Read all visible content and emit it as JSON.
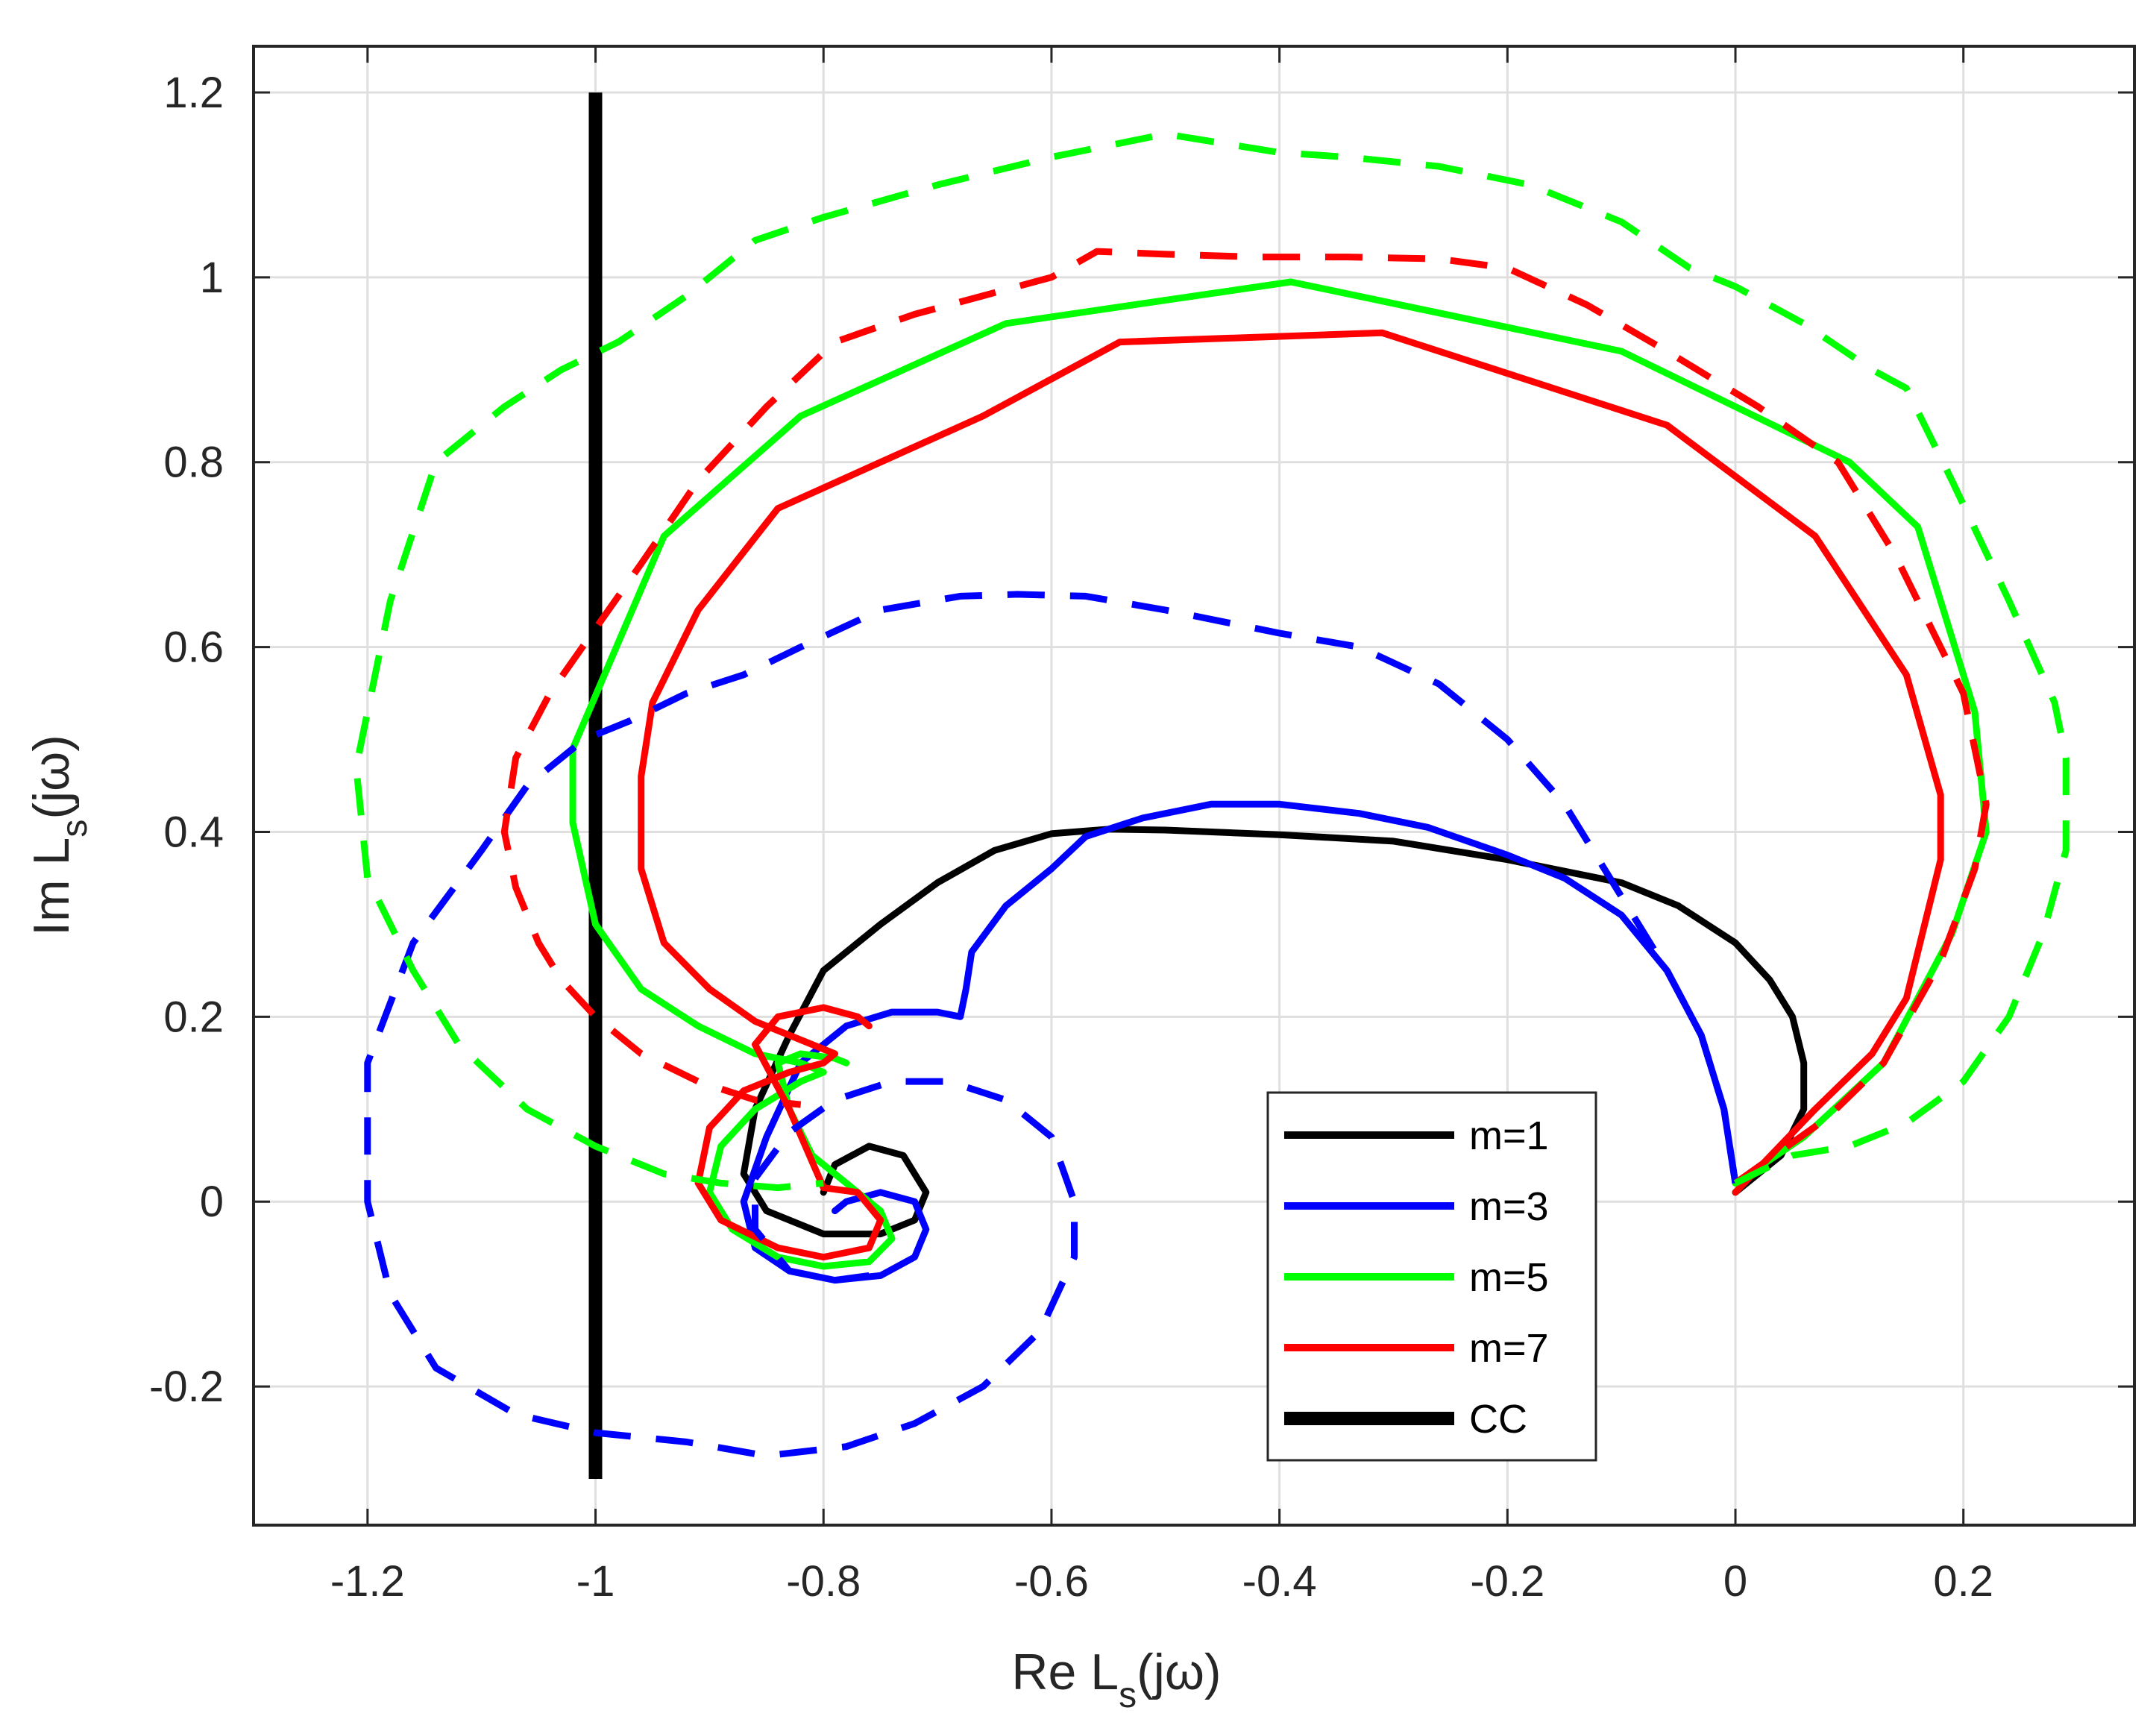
{
  "chart_data": {
    "type": "line",
    "title": "",
    "xlabel": {
      "main": "Re L",
      "sub": "s",
      "tail": "(jω)"
    },
    "ylabel": {
      "main": "Im L",
      "sub": "s",
      "tail": "(jω)"
    },
    "xlim": [
      -1.3,
      0.35
    ],
    "ylim": [
      -0.35,
      1.25
    ],
    "xticks": [
      -1.2,
      -1,
      -0.8,
      -0.6,
      -0.4,
      -0.2,
      0,
      0.2
    ],
    "xtick_labels": [
      "-1.2",
      "-1",
      "-0.8",
      "-0.6",
      "-0.4",
      "-0.2",
      "0",
      "0.2"
    ],
    "yticks": [
      -0.2,
      0,
      0.2,
      0.4,
      0.6,
      0.8,
      1.0,
      1.2
    ],
    "ytick_labels": [
      "-0.2",
      "0",
      "0.2",
      "0.4",
      "0.6",
      "0.8",
      "1",
      "1.2"
    ],
    "grid": true,
    "legend_position": "bottom-right",
    "legend": [
      {
        "label": "m=1",
        "color": "#000000",
        "width": "normal"
      },
      {
        "label": "m=3",
        "color": "#0000ff",
        "width": "normal"
      },
      {
        "label": "m=5",
        "color": "#00ff00",
        "width": "normal"
      },
      {
        "label": "m=7",
        "color": "#ff0000",
        "width": "normal"
      },
      {
        "label": "CC",
        "color": "#000000",
        "width": "thick"
      }
    ],
    "series": [
      {
        "name": "CC",
        "color": "#000000",
        "style": "solid",
        "weight": "thick",
        "x": [
          -1,
          -1
        ],
        "y": [
          -0.3,
          1.2
        ]
      },
      {
        "name": "m=1",
        "color": "#000000",
        "style": "solid",
        "weight": "normal",
        "x": [
          0.0,
          0.04,
          0.06,
          0.06,
          0.05,
          0.03,
          0.0,
          -0.05,
          -0.1,
          -0.2,
          -0.3,
          -0.4,
          -0.5,
          -0.55,
          -0.6,
          -0.65,
          -0.7,
          -0.75,
          -0.8,
          -0.83,
          -0.86,
          -0.87,
          -0.85,
          -0.8,
          -0.75,
          -0.72,
          -0.71,
          -0.73,
          -0.76,
          -0.79,
          -0.8
        ],
        "y": [
          0.01,
          0.05,
          0.1,
          0.15,
          0.2,
          0.24,
          0.28,
          0.32,
          0.345,
          0.37,
          0.39,
          0.397,
          0.402,
          0.403,
          0.398,
          0.38,
          0.345,
          0.3,
          0.25,
          0.18,
          0.1,
          0.03,
          -0.01,
          -0.035,
          -0.035,
          -0.02,
          0.01,
          0.05,
          0.06,
          0.04,
          0.01
        ]
      },
      {
        "name": "m=3",
        "color": "#0000ff",
        "style": "solid",
        "weight": "normal",
        "x": [
          0.0,
          -0.01,
          -0.03,
          -0.06,
          -0.1,
          -0.15,
          -0.2,
          -0.27,
          -0.33,
          -0.4,
          -0.46,
          -0.52,
          -0.57,
          -0.6,
          -0.64,
          -0.67,
          -0.675,
          -0.68,
          -0.7,
          -0.74,
          -0.78,
          -0.82,
          -0.85,
          -0.87,
          -0.86,
          -0.83,
          -0.79,
          -0.75,
          -0.72,
          -0.71,
          -0.72,
          -0.75,
          -0.78,
          -0.79
        ],
        "y": [
          0.02,
          0.1,
          0.18,
          0.25,
          0.31,
          0.35,
          0.375,
          0.405,
          0.42,
          0.43,
          0.43,
          0.415,
          0.395,
          0.36,
          0.32,
          0.27,
          0.23,
          0.2,
          0.205,
          0.205,
          0.19,
          0.15,
          0.07,
          0.0,
          -0.05,
          -0.075,
          -0.085,
          -0.08,
          -0.06,
          -0.03,
          0.0,
          0.01,
          0.0,
          -0.01
        ]
      },
      {
        "name": "m=5",
        "color": "#00ff00",
        "style": "solid",
        "weight": "normal",
        "x": [
          0.0,
          0.06,
          0.13,
          0.19,
          0.22,
          0.21,
          0.16,
          0.1,
          -0.1,
          -0.39,
          -0.64,
          -0.82,
          -0.94,
          -1.02,
          -1.02,
          -1.0,
          -0.96,
          -0.91,
          -0.86,
          -0.82,
          -0.8,
          -0.82,
          -0.86,
          -0.89,
          -0.9,
          -0.88,
          -0.84,
          -0.8,
          -0.76,
          -0.74,
          -0.75,
          -0.78,
          -0.81,
          -0.83,
          -0.84,
          -0.82,
          -0.79,
          -0.78
        ],
        "y": [
          0.02,
          0.07,
          0.15,
          0.29,
          0.4,
          0.53,
          0.73,
          0.8,
          0.92,
          0.995,
          0.95,
          0.85,
          0.72,
          0.49,
          0.41,
          0.3,
          0.23,
          0.19,
          0.16,
          0.15,
          0.14,
          0.13,
          0.1,
          0.06,
          0.01,
          -0.03,
          -0.06,
          -0.07,
          -0.065,
          -0.04,
          -0.01,
          0.02,
          0.05,
          0.1,
          0.15,
          0.16,
          0.155,
          0.15
        ]
      },
      {
        "name": "m=7",
        "color": "#ff0000",
        "style": "solid",
        "weight": "normal",
        "x": [
          0.0,
          0.07,
          0.12,
          0.15,
          0.18,
          0.18,
          0.15,
          0.07,
          -0.06,
          -0.31,
          -0.54,
          -0.66,
          -0.84,
          -0.91,
          -0.95,
          -0.96,
          -0.96,
          -0.94,
          -0.9,
          -0.86,
          -0.82,
          -0.79,
          -0.8,
          -0.83,
          -0.87,
          -0.9,
          -0.91,
          -0.89,
          -0.84,
          -0.8,
          -0.76,
          -0.75,
          -0.77,
          -0.8,
          -0.83,
          -0.86,
          -0.84,
          -0.8,
          -0.77,
          -0.76
        ],
        "y": [
          0.01,
          0.1,
          0.16,
          0.22,
          0.37,
          0.44,
          0.57,
          0.72,
          0.84,
          0.94,
          0.93,
          0.85,
          0.75,
          0.64,
          0.54,
          0.46,
          0.36,
          0.28,
          0.23,
          0.195,
          0.175,
          0.16,
          0.15,
          0.14,
          0.12,
          0.08,
          0.02,
          -0.02,
          -0.05,
          -0.06,
          -0.05,
          -0.02,
          0.01,
          0.015,
          0.1,
          0.17,
          0.2,
          0.21,
          0.2,
          0.19
        ]
      },
      {
        "name": "",
        "color": "#0000ff",
        "style": "dashed",
        "weight": "normal",
        "x": [
          0.0,
          -0.01,
          -0.03,
          -0.06,
          -0.1,
          -0.15,
          -0.2,
          -0.26,
          -0.33,
          -0.4,
          -0.5,
          -0.57,
          -0.63,
          -0.68,
          -0.75,
          -0.82,
          -0.87,
          -0.92,
          -0.97,
          -1.01,
          -1.06,
          -1.1,
          -1.16,
          -1.2,
          -1.2,
          -1.18,
          -1.14,
          -1.07,
          -1.0,
          -0.92,
          -0.85,
          -0.78,
          -0.72,
          -0.66,
          -0.61,
          -0.58,
          -0.58,
          -0.6,
          -0.64,
          -0.69,
          -0.74,
          -0.79,
          -0.83,
          -0.86,
          -0.86,
          -0.83,
          -0.79,
          -0.76
        ],
        "y": [
          0.02,
          0.1,
          0.18,
          0.25,
          0.33,
          0.43,
          0.5,
          0.56,
          0.6,
          0.615,
          0.64,
          0.655,
          0.657,
          0.655,
          0.64,
          0.6,
          0.57,
          0.55,
          0.52,
          0.5,
          0.45,
          0.38,
          0.28,
          0.15,
          0.0,
          -0.1,
          -0.18,
          -0.23,
          -0.25,
          -0.26,
          -0.275,
          -0.265,
          -0.24,
          -0.2,
          -0.14,
          -0.06,
          0.0,
          0.07,
          0.11,
          0.13,
          0.13,
          0.11,
          0.075,
          0.025,
          -0.03,
          -0.075,
          -0.085,
          -0.08
        ]
      },
      {
        "name": "",
        "color": "#ff0000",
        "style": "dashed",
        "weight": "normal",
        "x": [
          0.0,
          0.08,
          0.13,
          0.18,
          0.21,
          0.22,
          0.2,
          0.14,
          0.09,
          0.02,
          -0.06,
          -0.13,
          -0.2,
          -0.26,
          -0.34,
          -0.42,
          -0.5,
          -0.56,
          -0.6,
          -0.66,
          -0.72,
          -0.79,
          -0.85,
          -0.91,
          -0.96,
          -1.0,
          -1.04,
          -1.07,
          -1.08,
          -1.07,
          -1.05,
          -1.03,
          -1.0,
          -0.96,
          -0.91,
          -0.86,
          -0.82
        ],
        "y": [
          0.02,
          0.09,
          0.15,
          0.26,
          0.36,
          0.43,
          0.55,
          0.7,
          0.8,
          0.86,
          0.92,
          0.97,
          1.01,
          1.02,
          1.022,
          1.022,
          1.025,
          1.028,
          1.0,
          0.98,
          0.96,
          0.93,
          0.86,
          0.78,
          0.69,
          0.62,
          0.55,
          0.48,
          0.4,
          0.34,
          0.28,
          0.24,
          0.2,
          0.16,
          0.13,
          0.11,
          0.105
        ]
      },
      {
        "name": "",
        "color": "#00ff00",
        "style": "dashed",
        "weight": "normal",
        "x": [
          0.0,
          0.05,
          0.1,
          0.15,
          0.2,
          0.24,
          0.27,
          0.29,
          0.29,
          0.28,
          0.24,
          0.19,
          0.15,
          0.12,
          0.06,
          0.0,
          -0.04,
          -0.1,
          -0.18,
          -0.26,
          -0.34,
          -0.4,
          -0.5,
          -0.6,
          -0.7,
          -0.8,
          -0.86,
          -0.92,
          -0.98,
          -1.03,
          -1.08,
          -1.14,
          -1.18,
          -1.21,
          -1.2,
          -1.16,
          -1.12,
          -1.06,
          -1.0,
          -0.94,
          -0.89,
          -0.84,
          -0.8
        ],
        "y": [
          0.02,
          0.05,
          0.06,
          0.085,
          0.13,
          0.2,
          0.29,
          0.38,
          0.48,
          0.54,
          0.65,
          0.78,
          0.88,
          0.9,
          0.95,
          0.99,
          1.01,
          1.06,
          1.1,
          1.12,
          1.13,
          1.135,
          1.155,
          1.13,
          1.1,
          1.065,
          1.04,
          0.98,
          0.93,
          0.9,
          0.86,
          0.8,
          0.65,
          0.47,
          0.35,
          0.25,
          0.17,
          0.1,
          0.06,
          0.03,
          0.02,
          0.015,
          0.02
        ]
      }
    ]
  }
}
